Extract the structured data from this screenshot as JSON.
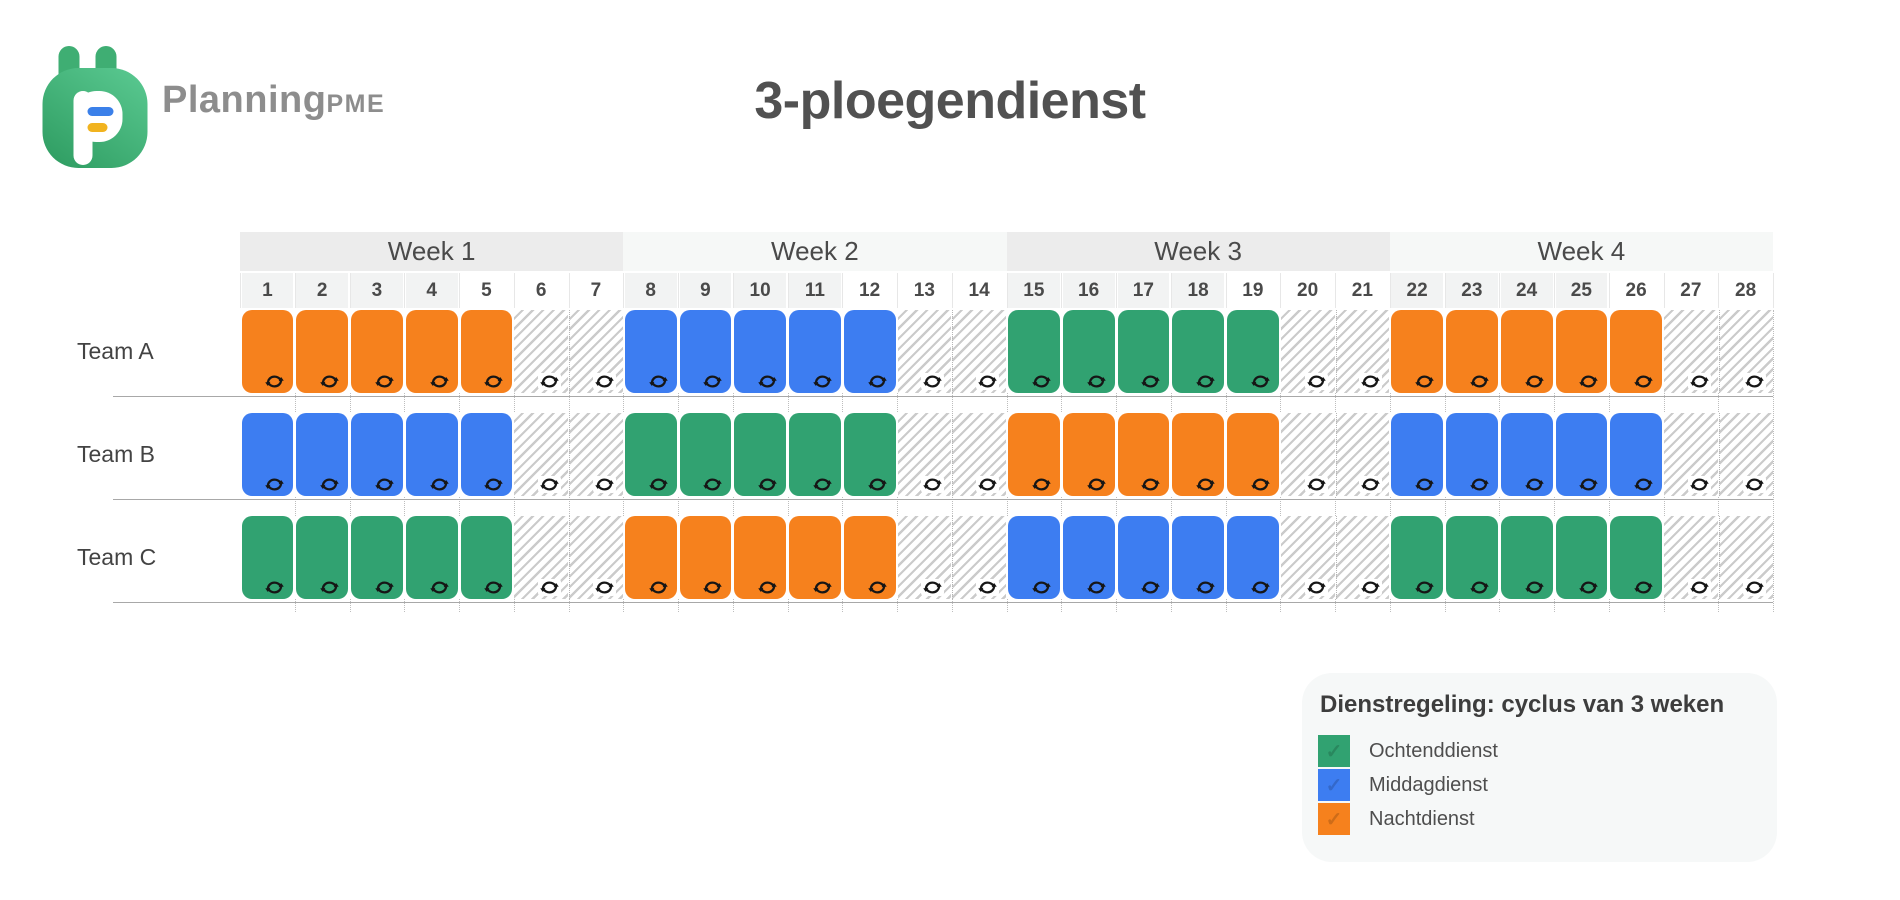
{
  "brand": {
    "name": "Planning",
    "suffix": "PME"
  },
  "title": "3-ploegendienst",
  "schedule": {
    "weeks": [
      "Week 1",
      "Week 2",
      "Week 3",
      "Week 4"
    ],
    "days": [
      1,
      2,
      3,
      4,
      5,
      6,
      7,
      8,
      9,
      10,
      11,
      12,
      13,
      14,
      15,
      16,
      17,
      18,
      19,
      20,
      21,
      22,
      23,
      24,
      25,
      26,
      27,
      28
    ],
    "teams": [
      {
        "name": "Team A",
        "shifts": [
          "nacht",
          "nacht",
          "nacht",
          "nacht",
          "nacht",
          "vrij",
          "vrij",
          "middag",
          "middag",
          "middag",
          "middag",
          "middag",
          "vrij",
          "vrij",
          "ochtend",
          "ochtend",
          "ochtend",
          "ochtend",
          "ochtend",
          "vrij",
          "vrij",
          "nacht",
          "nacht",
          "nacht",
          "nacht",
          "nacht",
          "vrij",
          "vrij"
        ]
      },
      {
        "name": "Team B",
        "shifts": [
          "middag",
          "middag",
          "middag",
          "middag",
          "middag",
          "vrij",
          "vrij",
          "ochtend",
          "ochtend",
          "ochtend",
          "ochtend",
          "ochtend",
          "vrij",
          "vrij",
          "nacht",
          "nacht",
          "nacht",
          "nacht",
          "nacht",
          "vrij",
          "vrij",
          "middag",
          "middag",
          "middag",
          "middag",
          "middag",
          "vrij",
          "vrij"
        ]
      },
      {
        "name": "Team C",
        "shifts": [
          "ochtend",
          "ochtend",
          "ochtend",
          "ochtend",
          "ochtend",
          "vrij",
          "vrij",
          "nacht",
          "nacht",
          "nacht",
          "nacht",
          "nacht",
          "vrij",
          "vrij",
          "middag",
          "middag",
          "middag",
          "middag",
          "middag",
          "vrij",
          "vrij",
          "ochtend",
          "ochtend",
          "ochtend",
          "ochtend",
          "ochtend",
          "vrij",
          "vrij"
        ]
      }
    ]
  },
  "shift_types": {
    "ochtend": {
      "label": "Ochtenddienst",
      "color": "#31a271"
    },
    "middag": {
      "label": "Middagdienst",
      "color": "#3d7df1"
    },
    "nacht": {
      "label": "Nachtdienst",
      "color": "#f6811d"
    },
    "vrij": {
      "color": null,
      "hatched": true
    }
  },
  "legend": {
    "title": "Dienstregeling: cyclus van 3 weken",
    "items": [
      {
        "type": "ochtend",
        "label": "Ochtenddienst"
      },
      {
        "type": "middag",
        "label": "Middagdienst"
      },
      {
        "type": "nacht",
        "label": "Nachtdienst"
      }
    ]
  }
}
